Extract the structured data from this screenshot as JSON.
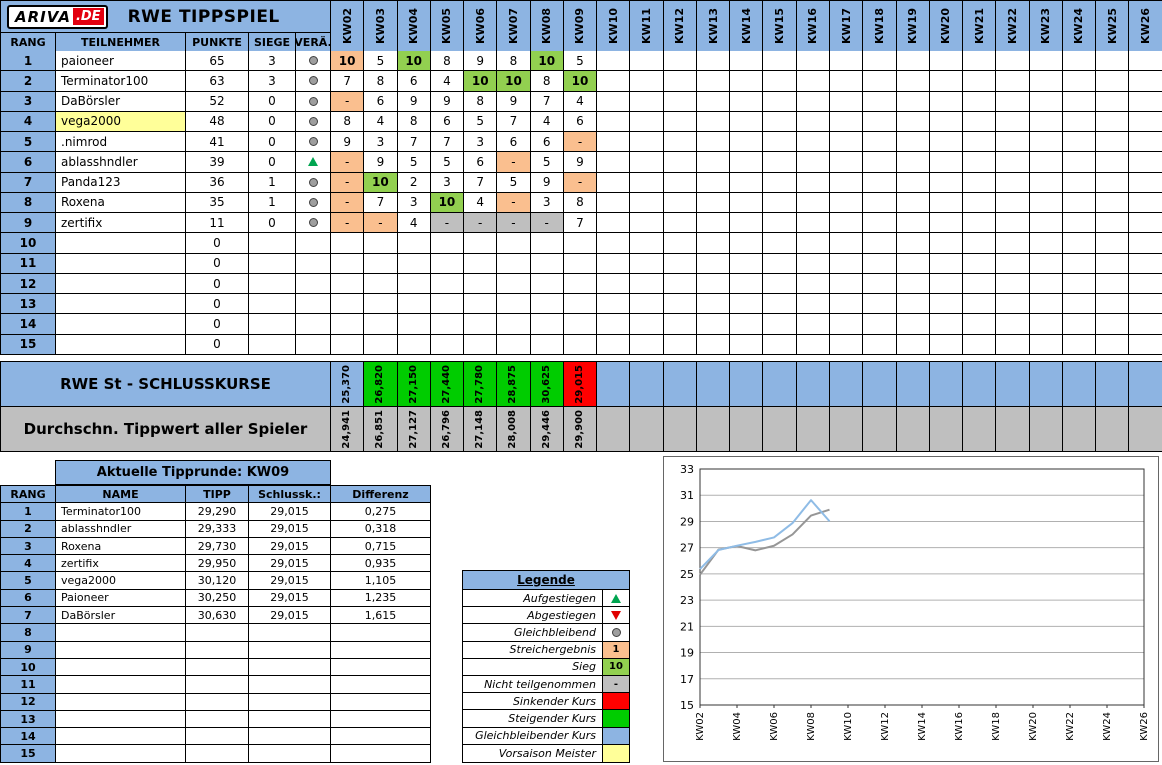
{
  "colors": {
    "header_blue": "#8DB4E2",
    "orange": "#FABF8F",
    "sieg_green": "#92D050",
    "kurs_green": "#00CC00",
    "kurs_red": "#FF0000",
    "gray": "#BFBFBF",
    "yellow": "#FFFF99"
  },
  "header": {
    "logo_main": "ARIVA",
    "logo_suffix": ".DE",
    "title": "RWE TIPPSPIEL",
    "columns": [
      "RANG",
      "TEILNEHMER",
      "PUNKTE",
      "SIEGE",
      "VERÄ."
    ],
    "weeks": [
      "KW02",
      "KW03",
      "KW04",
      "KW05",
      "KW06",
      "KW07",
      "KW08",
      "KW09",
      "KW10",
      "KW11",
      "KW12",
      "KW13",
      "KW14",
      "KW15",
      "KW16",
      "KW17",
      "KW18",
      "KW19",
      "KW20",
      "KW21",
      "KW22",
      "KW23",
      "KW24",
      "KW25",
      "KW26"
    ]
  },
  "main_table": {
    "rows": [
      {
        "rank": "1",
        "name": "paioneer",
        "punkte": "65",
        "siege": "3",
        "vera": "circle",
        "tips": [
          {
            "v": "10",
            "bg": "orange",
            "b": true
          },
          {
            "v": "5"
          },
          {
            "v": "10",
            "bg": "sieg",
            "b": true
          },
          {
            "v": "8"
          },
          {
            "v": "9"
          },
          {
            "v": "8"
          },
          {
            "v": "10",
            "bg": "sieg",
            "b": true
          },
          {
            "v": "5"
          }
        ]
      },
      {
        "rank": "2",
        "name": "Terminator100",
        "punkte": "63",
        "siege": "3",
        "vera": "circle",
        "tips": [
          {
            "v": "7"
          },
          {
            "v": "8"
          },
          {
            "v": "6"
          },
          {
            "v": "4"
          },
          {
            "v": "10",
            "bg": "sieg",
            "b": true
          },
          {
            "v": "10",
            "bg": "sieg",
            "b": true
          },
          {
            "v": "8"
          },
          {
            "v": "10",
            "bg": "sieg",
            "b": true
          }
        ]
      },
      {
        "rank": "3",
        "name": "DaBörsler",
        "punkte": "52",
        "siege": "0",
        "vera": "circle",
        "tips": [
          {
            "v": "-",
            "bg": "orange"
          },
          {
            "v": "6"
          },
          {
            "v": "9"
          },
          {
            "v": "9"
          },
          {
            "v": "8"
          },
          {
            "v": "9"
          },
          {
            "v": "7"
          },
          {
            "v": "4"
          }
        ]
      },
      {
        "rank": "4",
        "name": "vega2000",
        "name_bg": "yellow",
        "punkte": "48",
        "siege": "0",
        "vera": "circle",
        "tips": [
          {
            "v": "8"
          },
          {
            "v": "4"
          },
          {
            "v": "8"
          },
          {
            "v": "6"
          },
          {
            "v": "5"
          },
          {
            "v": "7"
          },
          {
            "v": "4"
          },
          {
            "v": "6"
          }
        ]
      },
      {
        "rank": "5",
        "name": ".nimrod",
        "punkte": "41",
        "siege": "0",
        "vera": "circle",
        "tips": [
          {
            "v": "9"
          },
          {
            "v": "3"
          },
          {
            "v": "7"
          },
          {
            "v": "7"
          },
          {
            "v": "3"
          },
          {
            "v": "6"
          },
          {
            "v": "6"
          },
          {
            "v": "-",
            "bg": "orange"
          }
        ]
      },
      {
        "rank": "6",
        "name": "ablasshndler",
        "punkte": "39",
        "siege": "0",
        "vera": "up",
        "tips": [
          {
            "v": "-",
            "bg": "orange"
          },
          {
            "v": "9"
          },
          {
            "v": "5"
          },
          {
            "v": "5"
          },
          {
            "v": "6"
          },
          {
            "v": "-",
            "bg": "orange"
          },
          {
            "v": "5"
          },
          {
            "v": "9"
          }
        ]
      },
      {
        "rank": "7",
        "name": "Panda123",
        "punkte": "36",
        "siege": "1",
        "vera": "circle",
        "tips": [
          {
            "v": "-",
            "bg": "orange"
          },
          {
            "v": "10",
            "bg": "sieg",
            "b": true
          },
          {
            "v": "2"
          },
          {
            "v": "3"
          },
          {
            "v": "7"
          },
          {
            "v": "5"
          },
          {
            "v": "9"
          },
          {
            "v": "-",
            "bg": "orange"
          }
        ]
      },
      {
        "rank": "8",
        "name": "Roxena",
        "punkte": "35",
        "siege": "1",
        "vera": "circle",
        "tips": [
          {
            "v": "-",
            "bg": "orange"
          },
          {
            "v": "7"
          },
          {
            "v": "3"
          },
          {
            "v": "10",
            "bg": "sieg",
            "b": true
          },
          {
            "v": "4"
          },
          {
            "v": "-",
            "bg": "orange"
          },
          {
            "v": "3"
          },
          {
            "v": "8"
          }
        ]
      },
      {
        "rank": "9",
        "name": "zertifix",
        "punkte": "11",
        "siege": "0",
        "vera": "circle",
        "tips": [
          {
            "v": "-",
            "bg": "orange"
          },
          {
            "v": "-",
            "bg": "orange"
          },
          {
            "v": "4"
          },
          {
            "v": "-",
            "bg": "gray"
          },
          {
            "v": "-",
            "bg": "gray"
          },
          {
            "v": "-",
            "bg": "gray"
          },
          {
            "v": "-",
            "bg": "gray"
          },
          {
            "v": "7"
          }
        ]
      },
      {
        "rank": "10",
        "name": "",
        "punkte": "0",
        "siege": "",
        "vera": "",
        "tips": []
      },
      {
        "rank": "11",
        "name": "",
        "punkte": "0",
        "siege": "",
        "vera": "",
        "tips": []
      },
      {
        "rank": "12",
        "name": "",
        "punkte": "0",
        "siege": "",
        "vera": "",
        "tips": []
      },
      {
        "rank": "13",
        "name": "",
        "punkte": "0",
        "siege": "",
        "vera": "",
        "tips": []
      },
      {
        "rank": "14",
        "name": "",
        "punkte": "0",
        "siege": "",
        "vera": "",
        "tips": []
      },
      {
        "rank": "15",
        "name": "",
        "punkte": "0",
        "siege": "",
        "vera": "",
        "tips": []
      }
    ]
  },
  "kurse": {
    "label": "RWE St - SCHLUSSKURSE",
    "values": [
      {
        "v": "25,370",
        "bg": "blue"
      },
      {
        "v": "26,820",
        "bg": "green"
      },
      {
        "v": "27,150",
        "bg": "green"
      },
      {
        "v": "27,440",
        "bg": "green"
      },
      {
        "v": "27,780",
        "bg": "green"
      },
      {
        "v": "28,875",
        "bg": "green"
      },
      {
        "v": "30,625",
        "bg": "green"
      },
      {
        "v": "29,015",
        "bg": "red"
      }
    ]
  },
  "durchschnitt": {
    "label": "Durchschn. Tippwert aller Spieler",
    "values": [
      "24,941",
      "26,851",
      "27,127",
      "26,796",
      "27,148",
      "28,008",
      "29,446",
      "29,900"
    ]
  },
  "round": {
    "title": "Aktuelle Tipprunde:  KW09",
    "columns": [
      "RANG",
      "NAME",
      "TIPP",
      "Schlussk.:",
      "Differenz"
    ],
    "rows": [
      {
        "rank": "1",
        "name": "Terminator100",
        "tipp": "29,290",
        "schluss": "29,015",
        "diff": "0,275"
      },
      {
        "rank": "2",
        "name": "ablasshndler",
        "tipp": "29,333",
        "schluss": "29,015",
        "diff": "0,318"
      },
      {
        "rank": "3",
        "name": "Roxena",
        "tipp": "29,730",
        "schluss": "29,015",
        "diff": "0,715"
      },
      {
        "rank": "4",
        "name": "zertifix",
        "tipp": "29,950",
        "schluss": "29,015",
        "diff": "0,935"
      },
      {
        "rank": "5",
        "name": "vega2000",
        "tipp": "30,120",
        "schluss": "29,015",
        "diff": "1,105"
      },
      {
        "rank": "6",
        "name": "Paioneer",
        "tipp": "30,250",
        "schluss": "29,015",
        "diff": "1,235"
      },
      {
        "rank": "7",
        "name": "DaBörsler",
        "tipp": "30,630",
        "schluss": "29,015",
        "diff": "1,615"
      },
      {
        "rank": "8",
        "name": "",
        "tipp": "",
        "schluss": "",
        "diff": ""
      },
      {
        "rank": "9",
        "name": "",
        "tipp": "",
        "schluss": "",
        "diff": ""
      },
      {
        "rank": "10",
        "name": "",
        "tipp": "",
        "schluss": "",
        "diff": ""
      },
      {
        "rank": "11",
        "name": "",
        "tipp": "",
        "schluss": "",
        "diff": ""
      },
      {
        "rank": "12",
        "name": "",
        "tipp": "",
        "schluss": "",
        "diff": ""
      },
      {
        "rank": "13",
        "name": "",
        "tipp": "",
        "schluss": "",
        "diff": ""
      },
      {
        "rank": "14",
        "name": "",
        "tipp": "",
        "schluss": "",
        "diff": ""
      },
      {
        "rank": "15",
        "name": "",
        "tipp": "",
        "schluss": "",
        "diff": ""
      }
    ]
  },
  "legend": {
    "title": "Legende",
    "items": [
      {
        "label": "Aufgestiegen",
        "swatch": "triangle-up"
      },
      {
        "label": "Abgestiegen",
        "swatch": "triangle-down"
      },
      {
        "label": "Gleichbleibend",
        "swatch": "circle"
      },
      {
        "label": "Streichergebnis",
        "swatch": "cell",
        "bg": "orange",
        "text": "1"
      },
      {
        "label": "Sieg",
        "swatch": "cell",
        "bg": "sieg",
        "text": "10"
      },
      {
        "label": "Nicht teilgenommen",
        "swatch": "cell",
        "bg": "gray",
        "text": "-"
      },
      {
        "label": "Sinkender Kurs",
        "swatch": "cell",
        "bg": "red",
        "text": ""
      },
      {
        "label": "Steigender Kurs",
        "swatch": "cell",
        "bg": "green",
        "text": ""
      },
      {
        "label": "Gleichbleibender Kurs",
        "swatch": "cell",
        "bg": "blue",
        "text": ""
      },
      {
        "label": "Vorsaison Meister",
        "swatch": "cell",
        "bg": "yellow",
        "text": ""
      }
    ]
  },
  "chart_data": {
    "type": "line",
    "title": "",
    "xlabel": "",
    "ylabel": "",
    "x_weeks": [
      "KW02",
      "KW03",
      "KW04",
      "KW05",
      "KW06",
      "KW07",
      "KW08",
      "KW09",
      "KW10",
      "KW11",
      "KW12",
      "KW13",
      "KW14",
      "KW15",
      "KW16",
      "KW17",
      "KW18",
      "KW19",
      "KW20",
      "KW21",
      "KW22",
      "KW23",
      "KW24",
      "KW25",
      "KW26"
    ],
    "x_tick_labels": [
      "KW02",
      "KW04",
      "KW06",
      "KW08",
      "KW10",
      "KW12",
      "KW14",
      "KW16",
      "KW18",
      "KW20",
      "KW22",
      "KW24",
      "KW26"
    ],
    "ylim": [
      15,
      33
    ],
    "yticks": [
      15,
      17,
      19,
      21,
      23,
      25,
      27,
      29,
      31,
      33
    ],
    "grid": true,
    "legend_position": "none",
    "series": [
      {
        "name": "Durchschn. Tippwert aller Spieler",
        "color": "#969696",
        "values": [
          24.941,
          26.851,
          27.127,
          26.796,
          27.148,
          28.008,
          29.446,
          29.9
        ]
      },
      {
        "name": "RWE St Schlusskurs",
        "color": "#8FBCE6",
        "values": [
          25.37,
          26.82,
          27.15,
          27.44,
          27.78,
          28.875,
          30.625,
          29.015
        ]
      }
    ]
  }
}
